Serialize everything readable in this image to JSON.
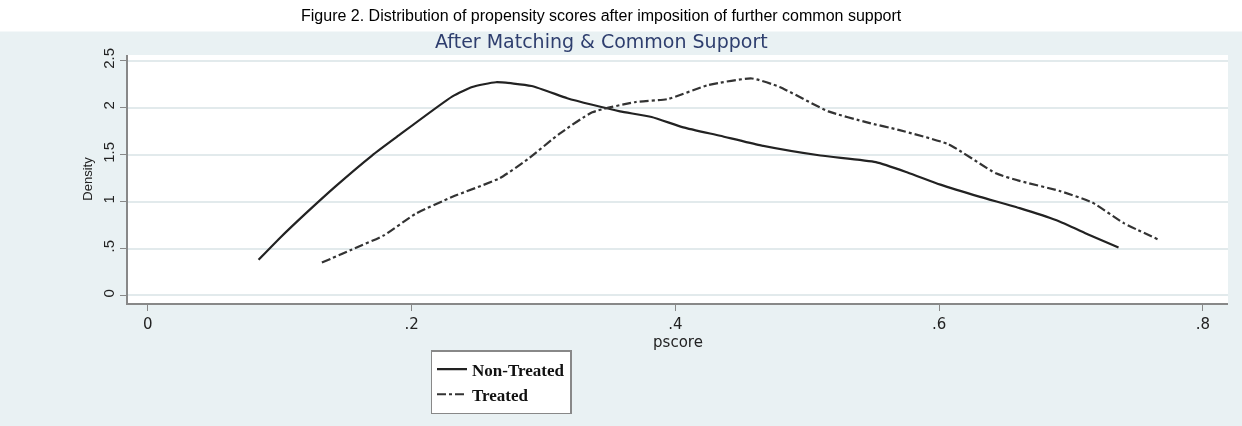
{
  "chart_data": {
    "type": "line",
    "title": "Figure 2. Distribution of propensity scores after imposition of further common support",
    "subtitle": "After Matching & Common Support",
    "xlabel": "pscore",
    "ylabel": "Density",
    "xlim": [
      -0.015,
      0.819
    ],
    "xticks": [
      0,
      {
        "value": 0.2,
        "label": ".2"
      },
      {
        "value": 0.4,
        "label": ".4"
      },
      {
        "value": 0.6,
        "label": ".6"
      },
      {
        "value": 0.8,
        "label": ".8"
      }
    ],
    "ylim": [
      -0.08,
      2.56
    ],
    "yticks": [
      0,
      {
        "value": 0.5,
        "label": ".5"
      },
      1,
      1.5,
      2,
      2.5
    ],
    "grid": "y",
    "legend": "bottom",
    "marker": "none",
    "series": [
      {
        "name": "Non-Treated",
        "color": "#222222",
        "line_style": "solid",
        "x": [
          0.084,
          0.1,
          0.121,
          0.143,
          0.17,
          0.188,
          0.231,
          0.246,
          0.264,
          0.291,
          0.318,
          0.337,
          0.358,
          0.382,
          0.406,
          0.434,
          0.464,
          0.51,
          0.552,
          0.576,
          0.601,
          0.631,
          0.661,
          0.689,
          0.713,
          0.736
        ],
        "values": [
          0.38,
          0.61,
          0.89,
          1.17,
          1.49,
          1.68,
          2.12,
          2.22,
          2.27,
          2.23,
          2.1,
          2.03,
          1.96,
          1.9,
          1.79,
          1.7,
          1.6,
          1.49,
          1.42,
          1.31,
          1.18,
          1.05,
          0.93,
          0.8,
          0.65,
          0.51
        ]
      },
      {
        "name": "Treated",
        "color": "#333333",
        "line_style": "dashdot",
        "x": [
          0.132,
          0.155,
          0.179,
          0.203,
          0.231,
          0.267,
          0.288,
          0.312,
          0.337,
          0.37,
          0.394,
          0.425,
          0.458,
          0.479,
          0.516,
          0.546,
          0.57,
          0.607,
          0.643,
          0.661,
          0.692,
          0.716,
          0.74,
          0.767
        ],
        "values": [
          0.35,
          0.49,
          0.64,
          0.87,
          1.05,
          1.25,
          1.45,
          1.72,
          1.95,
          2.06,
          2.09,
          2.24,
          2.31,
          2.22,
          1.96,
          1.84,
          1.76,
          1.61,
          1.3,
          1.22,
          1.11,
          0.99,
          0.77,
          0.59
        ]
      }
    ]
  }
}
